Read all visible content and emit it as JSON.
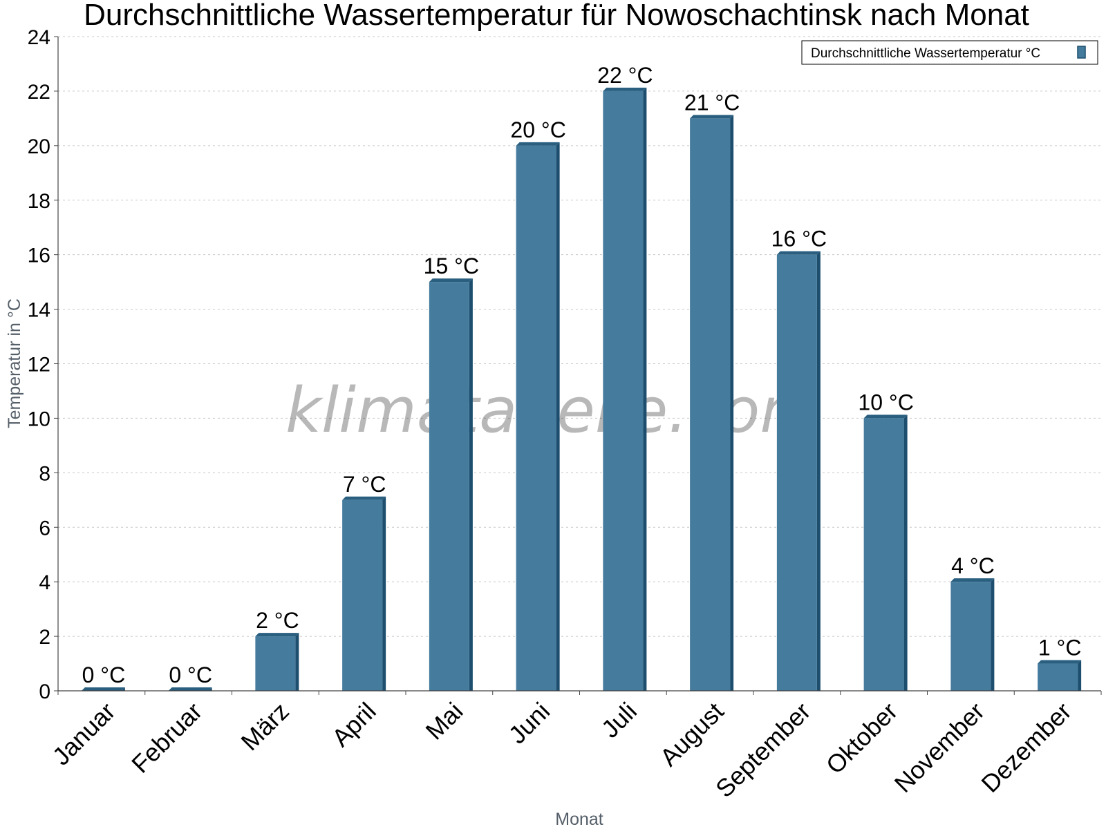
{
  "chart_data": {
    "type": "bar",
    "title": "Durchschnittliche Wassertemperatur für Nowoschachtinsk nach Monat",
    "xlabel": "Monat",
    "ylabel": "Temperatur in °C",
    "categories": [
      "Januar",
      "Februar",
      "März",
      "April",
      "Mai",
      "Juni",
      "Juli",
      "August",
      "September",
      "Oktober",
      "November",
      "Dezember"
    ],
    "series": [
      {
        "name": "Durchschnittliche Wassertemperatur °C",
        "values": [
          0,
          0,
          2,
          7,
          15,
          20,
          22,
          21,
          16,
          10,
          4,
          1
        ],
        "labels": [
          "0 °C",
          "0 °C",
          "2 °C",
          "7 °C",
          "15 °C",
          "20 °C",
          "22 °C",
          "21 °C",
          "16 °C",
          "10 °C",
          "4 °C",
          "1 °C"
        ]
      }
    ],
    "ylim": [
      0,
      24
    ],
    "yticks": [
      "0",
      "2",
      "4",
      "6",
      "8",
      "10",
      "12",
      "14",
      "16",
      "18",
      "20",
      "22",
      "24"
    ],
    "grid": true,
    "legend_position": "top-right",
    "colors": {
      "bar": "#457b9d",
      "bar_side": "#1d4e6e",
      "bar_top": "#2a5f80"
    },
    "watermark": "klimatabelle.com"
  }
}
